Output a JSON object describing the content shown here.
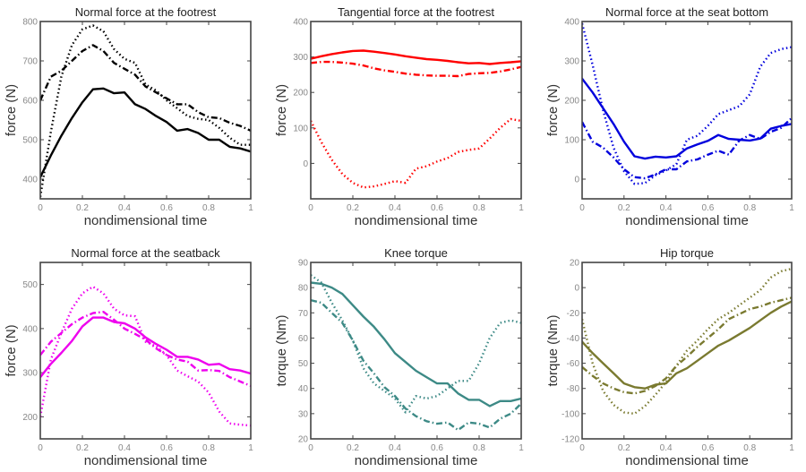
{
  "chart_data": [
    {
      "type": "line",
      "title": "Normal force at the footrest",
      "xlabel": "nondimensional time",
      "ylabel": "force (N)",
      "xlim": [
        0,
        1
      ],
      "ylim": [
        350,
        800
      ],
      "xticks": [
        0,
        0.2,
        0.4,
        0.6,
        0.8,
        1
      ],
      "yticks": [
        400,
        500,
        600,
        700,
        800
      ],
      "color": "#000000",
      "x": [
        0,
        0.05,
        0.1,
        0.15,
        0.2,
        0.25,
        0.3,
        0.35,
        0.4,
        0.45,
        0.5,
        0.55,
        0.6,
        0.65,
        0.7,
        0.75,
        0.8,
        0.85,
        0.9,
        0.95,
        1
      ],
      "series": [
        {
          "name": "solid",
          "style": "solid",
          "values": [
            405,
            460,
            510,
            555,
            595,
            628,
            630,
            618,
            620,
            590,
            578,
            560,
            545,
            523,
            527,
            517,
            500,
            500,
            482,
            478,
            470
          ]
        },
        {
          "name": "dash-dot",
          "style": "dashdot",
          "values": [
            600,
            660,
            675,
            700,
            725,
            740,
            725,
            695,
            680,
            665,
            635,
            620,
            605,
            590,
            590,
            570,
            557,
            555,
            543,
            535,
            523
          ]
        },
        {
          "name": "dotted",
          "style": "dotted",
          "values": [
            355,
            520,
            660,
            740,
            780,
            790,
            775,
            730,
            705,
            695,
            640,
            625,
            600,
            580,
            560,
            553,
            550,
            530,
            505,
            487,
            487
          ]
        }
      ]
    },
    {
      "type": "line",
      "title": "Tangential force at the footrest",
      "xlabel": "nondimensional time",
      "ylabel": "force (N)",
      "xlim": [
        0,
        1
      ],
      "ylim": [
        -100,
        400
      ],
      "xticks": [
        0,
        0.2,
        0.4,
        0.6,
        0.8,
        1
      ],
      "yticks": [
        0,
        100,
        200,
        300,
        400
      ],
      "color": "#ff0000",
      "x": [
        0,
        0.05,
        0.1,
        0.15,
        0.2,
        0.25,
        0.3,
        0.35,
        0.4,
        0.45,
        0.5,
        0.55,
        0.6,
        0.65,
        0.7,
        0.75,
        0.8,
        0.85,
        0.9,
        0.95,
        1
      ],
      "series": [
        {
          "name": "solid",
          "style": "solid",
          "values": [
            295,
            302,
            308,
            313,
            317,
            318,
            315,
            311,
            307,
            302,
            298,
            294,
            292,
            289,
            285,
            282,
            283,
            280,
            283,
            285,
            288
          ]
        },
        {
          "name": "dash-dot",
          "style": "dashdot",
          "values": [
            283,
            286,
            286,
            284,
            281,
            276,
            268,
            262,
            258,
            253,
            250,
            248,
            247,
            247,
            246,
            252,
            254,
            255,
            259,
            265,
            272
          ]
        },
        {
          "name": "dotted",
          "style": "dotted",
          "values": [
            120,
            60,
            10,
            -30,
            -55,
            -68,
            -65,
            -58,
            -50,
            -55,
            -15,
            -8,
            5,
            15,
            32,
            38,
            42,
            70,
            100,
            125,
            120
          ]
        }
      ]
    },
    {
      "type": "line",
      "title": "Normal force at the seat bottom",
      "xlabel": "nondimensional time",
      "ylabel": "force (N)",
      "xlim": [
        0,
        1
      ],
      "ylim": [
        -50,
        400
      ],
      "xticks": [
        0,
        0.2,
        0.4,
        0.6,
        0.8,
        1
      ],
      "yticks": [
        0,
        100,
        200,
        300,
        400
      ],
      "color": "#0000dd",
      "x": [
        0,
        0.05,
        0.1,
        0.15,
        0.2,
        0.25,
        0.3,
        0.35,
        0.4,
        0.45,
        0.5,
        0.55,
        0.6,
        0.65,
        0.7,
        0.75,
        0.8,
        0.85,
        0.9,
        0.95,
        1
      ],
      "series": [
        {
          "name": "solid",
          "style": "solid",
          "values": [
            255,
            220,
            180,
            140,
            95,
            58,
            52,
            57,
            55,
            58,
            78,
            88,
            97,
            112,
            102,
            100,
            98,
            103,
            128,
            135,
            140
          ]
        },
        {
          "name": "dash-dot",
          "style": "dashdot",
          "values": [
            145,
            95,
            80,
            55,
            25,
            5,
            2,
            12,
            25,
            25,
            45,
            50,
            62,
            72,
            62,
            98,
            112,
            102,
            120,
            130,
            155
          ]
        },
        {
          "name": "dotted",
          "style": "dotted",
          "values": [
            395,
            290,
            175,
            80,
            20,
            -12,
            -10,
            10,
            22,
            38,
            100,
            110,
            135,
            165,
            175,
            185,
            215,
            285,
            320,
            330,
            335
          ]
        }
      ]
    },
    {
      "type": "line",
      "title": "Normal force at the seatback",
      "xlabel": "nondimensional time",
      "ylabel": "force (N)",
      "xlim": [
        0,
        1
      ],
      "ylim": [
        150,
        550
      ],
      "xticks": [
        0,
        0.2,
        0.4,
        0.6,
        0.8,
        1
      ],
      "yticks": [
        200,
        300,
        400,
        500
      ],
      "color": "#ee00ee",
      "x": [
        0,
        0.05,
        0.1,
        0.15,
        0.2,
        0.25,
        0.3,
        0.35,
        0.4,
        0.45,
        0.5,
        0.55,
        0.6,
        0.65,
        0.7,
        0.75,
        0.8,
        0.85,
        0.9,
        0.95,
        1
      ],
      "series": [
        {
          "name": "solid",
          "style": "solid",
          "values": [
            290,
            320,
            345,
            372,
            405,
            425,
            425,
            415,
            412,
            400,
            380,
            365,
            352,
            336,
            336,
            330,
            318,
            320,
            308,
            305,
            298
          ]
        },
        {
          "name": "dash-dot",
          "style": "dashdot",
          "values": [
            340,
            370,
            390,
            410,
            425,
            435,
            438,
            420,
            400,
            388,
            375,
            355,
            340,
            330,
            325,
            305,
            306,
            304,
            290,
            280,
            270
          ]
        },
        {
          "name": "dotted",
          "style": "dotted",
          "values": [
            200,
            330,
            390,
            445,
            480,
            495,
            480,
            445,
            430,
            428,
            370,
            360,
            340,
            305,
            292,
            280,
            255,
            212,
            185,
            182,
            180
          ]
        }
      ]
    },
    {
      "type": "line",
      "title": "Knee torque",
      "xlabel": "nondimensional time",
      "ylabel": "torque (Nm)",
      "xlim": [
        0,
        1
      ],
      "ylim": [
        20,
        90
      ],
      "xticks": [
        0,
        0.2,
        0.4,
        0.6,
        0.8,
        1
      ],
      "yticks": [
        20,
        30,
        40,
        50,
        60,
        70,
        80,
        90
      ],
      "color": "#3d8a86",
      "x": [
        0,
        0.05,
        0.1,
        0.15,
        0.2,
        0.25,
        0.3,
        0.35,
        0.4,
        0.45,
        0.5,
        0.55,
        0.6,
        0.65,
        0.7,
        0.75,
        0.8,
        0.85,
        0.9,
        0.95,
        1
      ],
      "series": [
        {
          "name": "solid",
          "style": "solid",
          "values": [
            82,
            81.5,
            80,
            77.5,
            73,
            68.5,
            64.5,
            59.5,
            54,
            50.5,
            47,
            44.5,
            42,
            42,
            38,
            35.5,
            35.5,
            33,
            35,
            35,
            36
          ]
        },
        {
          "name": "dash-dot",
          "style": "dashdot",
          "values": [
            75,
            74,
            70,
            66,
            59,
            51,
            46,
            40.5,
            37,
            32,
            29,
            27,
            26,
            26.5,
            23.5,
            26.5,
            26,
            24.5,
            28,
            30,
            34
          ]
        },
        {
          "name": "dotted",
          "style": "dotted",
          "values": [
            85,
            82,
            74,
            67,
            59,
            48,
            42,
            39,
            36,
            30.5,
            37,
            36,
            37,
            40,
            43,
            43,
            50,
            60,
            66,
            67,
            66
          ]
        }
      ]
    },
    {
      "type": "line",
      "title": "Hip torque",
      "xlabel": "nondimensional time",
      "ylabel": "torque (Nm)",
      "xlim": [
        0,
        1
      ],
      "ylim": [
        -120,
        20
      ],
      "xticks": [
        0,
        0.2,
        0.4,
        0.6,
        0.8,
        1
      ],
      "yticks": [
        -120,
        -100,
        -80,
        -60,
        -40,
        -20,
        0,
        20
      ],
      "color": "#7a7a30",
      "x": [
        0,
        0.05,
        0.1,
        0.15,
        0.2,
        0.25,
        0.3,
        0.35,
        0.4,
        0.45,
        0.5,
        0.55,
        0.6,
        0.65,
        0.7,
        0.75,
        0.8,
        0.85,
        0.9,
        0.95,
        1
      ],
      "series": [
        {
          "name": "solid",
          "style": "solid",
          "values": [
            -43,
            -52,
            -60,
            -68,
            -76,
            -79,
            -80,
            -77,
            -76,
            -68,
            -64,
            -58,
            -52,
            -46,
            -42,
            -37,
            -32,
            -26,
            -20,
            -15,
            -11
          ]
        },
        {
          "name": "dash-dot",
          "style": "dashdot",
          "values": [
            -63,
            -70,
            -76,
            -80,
            -83,
            -84,
            -82,
            -78,
            -72,
            -62,
            -55,
            -47,
            -40,
            -33,
            -25,
            -21,
            -17,
            -15,
            -12,
            -10,
            -8
          ]
        },
        {
          "name": "dotted",
          "style": "dotted",
          "values": [
            -25,
            -60,
            -82,
            -93,
            -99,
            -100,
            -94,
            -85,
            -75,
            -62,
            -50,
            -42,
            -33,
            -25,
            -20,
            -14,
            -8,
            -2,
            8,
            13,
            15
          ]
        }
      ]
    }
  ]
}
